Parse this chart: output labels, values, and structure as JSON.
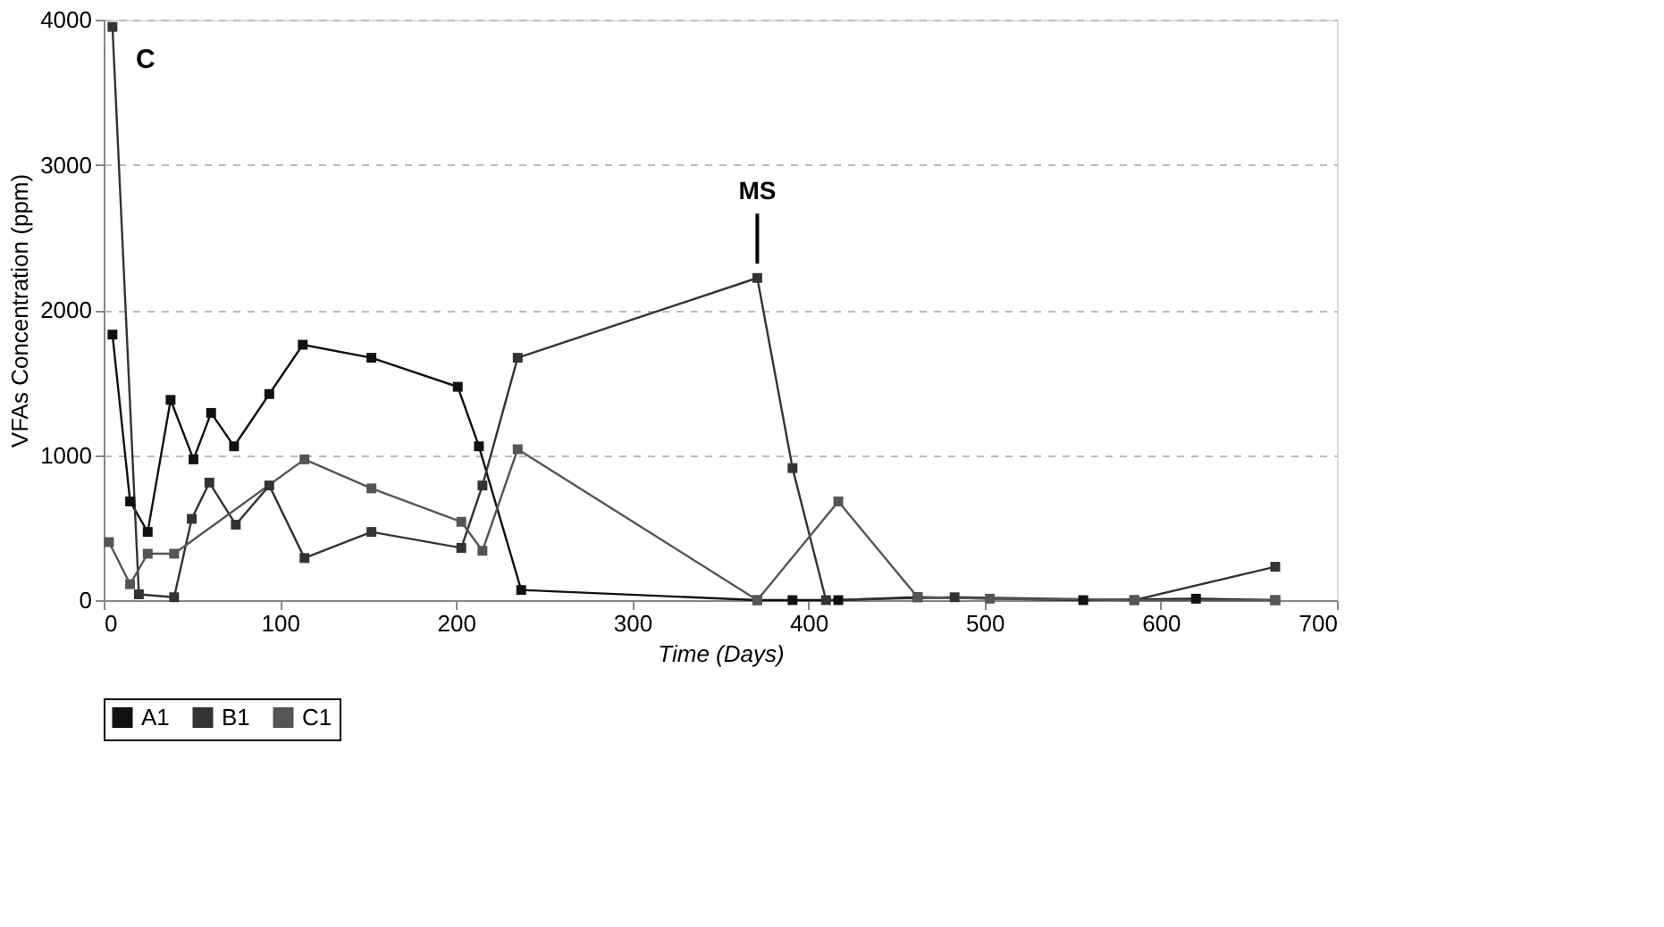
{
  "chart_data": {
    "type": "line",
    "xlabel": "Time (Days)",
    "ylabel": "VFAs Concentration (ppm)",
    "xlim": [
      0,
      700
    ],
    "xticks": [
      0,
      100,
      200,
      300,
      400,
      500,
      600,
      700
    ],
    "ylim": [
      0,
      4000
    ],
    "yticks": [
      0,
      1000,
      2000,
      3000,
      4000
    ],
    "grid": "y",
    "legend": "bottom",
    "marker": "square",
    "line_style": "solid",
    "annotations": [
      "C",
      {
        "text": "MS",
        "x": 371,
        "y": 2220
      }
    ],
    "series": [
      {
        "name": "A1",
        "color": "#111111",
        "x": [
          5,
          15,
          25,
          38,
          51,
          61,
          74,
          94,
          113,
          152,
          201,
          213,
          237,
          371,
          391,
          417,
          462,
          556,
          620,
          665
        ],
        "values": [
          1830,
          680,
          470,
          1380,
          970,
          1290,
          1060,
          1420,
          1760,
          1670,
          1470,
          1060,
          70,
          0,
          0,
          0,
          20,
          0,
          10,
          0
        ]
      },
      {
        "name": "B1",
        "color": "#333333",
        "x": [
          5,
          20,
          40,
          50,
          60,
          75,
          94,
          114,
          152,
          203,
          215,
          235,
          371,
          391,
          410,
          483,
          585,
          665
        ],
        "values": [
          3950,
          40,
          20,
          560,
          810,
          520,
          790,
          290,
          470,
          360,
          790,
          1670,
          2220,
          910,
          0,
          20,
          0,
          230
        ]
      },
      {
        "name": "C1",
        "color": "#555555",
        "x": [
          3,
          15,
          25,
          40,
          114,
          152,
          203,
          215,
          235,
          371,
          417,
          462,
          503,
          585,
          665
        ],
        "values": [
          400,
          110,
          320,
          320,
          970,
          770,
          540,
          340,
          1040,
          0,
          680,
          20,
          10,
          0,
          0
        ]
      }
    ]
  }
}
